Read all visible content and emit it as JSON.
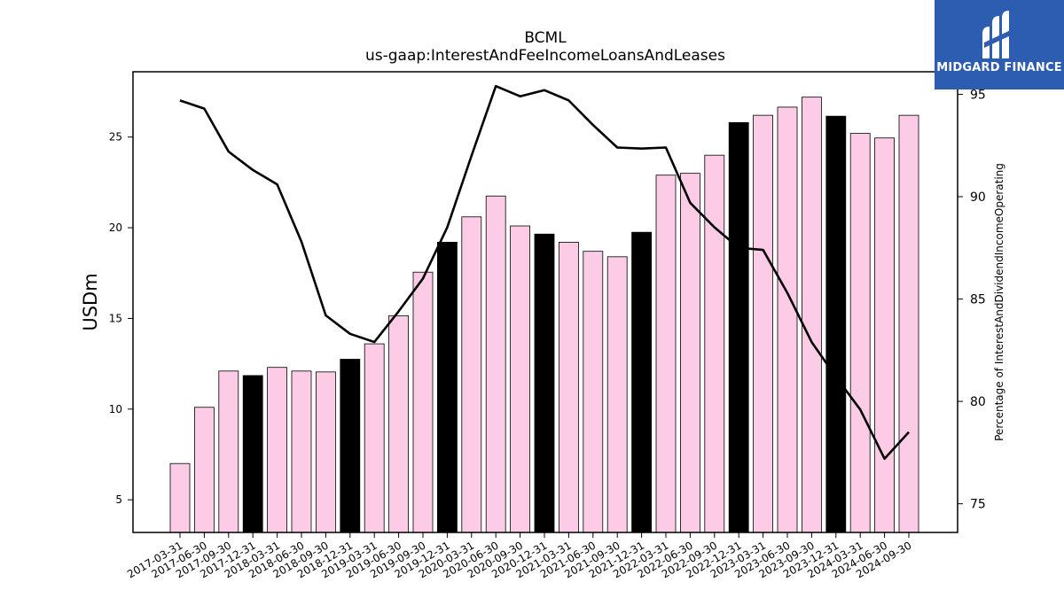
{
  "brand": {
    "name": "MIDGARD FINANCE",
    "bg_color": "#2d5db0",
    "icon": "midgard-logo-icon"
  },
  "chart_data": {
    "type": "bar",
    "title": "BCML",
    "subtitle": "us-gaap:InterestAndFeeIncomeLoansAndLeases",
    "ylabel": "USDm",
    "ylabel_right": "Percentage of InterestAndDividendIncomeOperating",
    "categories": [
      "2017-03-31",
      "2017-06-30",
      "2017-09-30",
      "2017-12-31",
      "2018-03-31",
      "2018-06-30",
      "2018-09-30",
      "2018-12-31",
      "2019-03-31",
      "2019-06-30",
      "2019-09-30",
      "2019-12-31",
      "2020-03-31",
      "2020-06-30",
      "2020-09-30",
      "2020-12-31",
      "2021-03-31",
      "2021-06-30",
      "2021-09-30",
      "2021-12-31",
      "2022-03-31",
      "2022-06-30",
      "2022-09-30",
      "2022-12-31",
      "2023-03-31",
      "2023-06-30",
      "2023-09-30",
      "2023-12-31",
      "2024-03-31",
      "2024-06-30",
      "2024-09-30"
    ],
    "series": [
      {
        "values": [
          7.0,
          10.1,
          12.1,
          11.85,
          12.3,
          12.1,
          12.05,
          12.75,
          13.6,
          15.15,
          17.55,
          19.2,
          20.6,
          21.75,
          20.1,
          19.65,
          19.2,
          18.7,
          18.4,
          19.75,
          22.9,
          23.0,
          24.0,
          25.8,
          26.2,
          26.65,
          27.2,
          26.15,
          25.2,
          24.95,
          26.2
        ],
        "highlight": [
          false,
          false,
          false,
          true,
          false,
          false,
          false,
          true,
          false,
          false,
          false,
          true,
          false,
          false,
          false,
          true,
          false,
          false,
          false,
          true,
          false,
          false,
          false,
          true,
          false,
          false,
          false,
          true,
          false,
          false,
          false
        ]
      },
      {
        "axis": "right",
        "values": [
          94.7,
          94.3,
          92.2,
          91.3,
          90.6,
          87.8,
          84.2,
          83.3,
          82.9,
          84.4,
          86.0,
          88.5,
          92.0,
          95.4,
          94.9,
          95.2,
          94.7,
          93.5,
          92.4,
          92.35,
          92.4,
          89.7,
          88.5,
          87.5,
          87.4,
          85.3,
          82.9,
          81.2,
          79.6,
          77.2,
          78.5
        ]
      }
    ],
    "ylim": [
      3.2,
      28.6
    ],
    "yticks": [
      5,
      10,
      15,
      20,
      25
    ],
    "ylim_right": [
      73.6,
      96.1
    ],
    "yticks_right": [
      75,
      80,
      85,
      90,
      95
    ],
    "grid": false,
    "colors": {
      "bar": "#fccbe6",
      "bar_highlight": "#000000",
      "bar_edge": "#000000",
      "line": "#000000"
    }
  }
}
